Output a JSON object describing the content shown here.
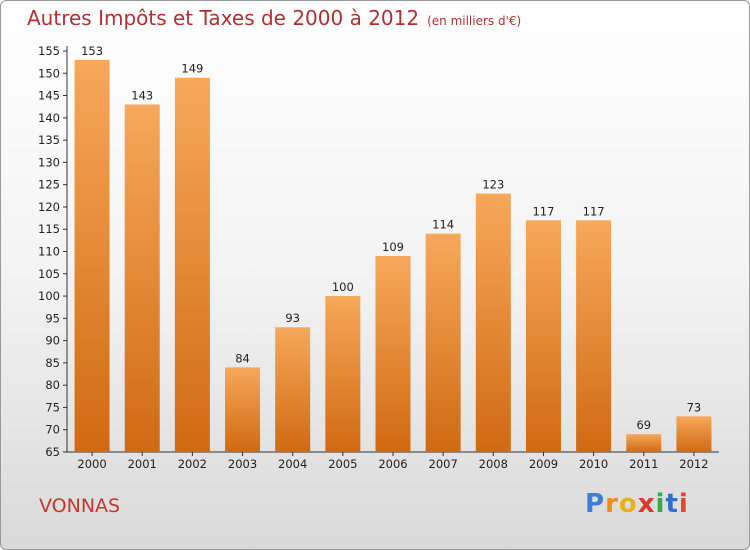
{
  "header": {
    "title": "Autres Impôts et Taxes de 2000 à 2012",
    "subtitle": "(en milliers d'€)"
  },
  "commune": "VONNAS",
  "logo": {
    "text": "Proxiti",
    "colors": [
      "#3a7fd5",
      "#f08a1a",
      "#e8b21b",
      "#d93a2b",
      "#3aa84a",
      "#2f6fc8",
      "#e0482e"
    ]
  },
  "colors": {
    "bar_top": "#f7a85a",
    "bar_bottom": "#d06a12",
    "title": "#b1302f"
  },
  "chart_data": {
    "type": "bar",
    "categories": [
      "2000",
      "2001",
      "2002",
      "2003",
      "2004",
      "2005",
      "2006",
      "2007",
      "2008",
      "2009",
      "2010",
      "2011",
      "2012"
    ],
    "values": [
      153,
      143,
      149,
      84,
      93,
      100,
      109,
      114,
      123,
      117,
      117,
      69,
      73
    ],
    "ylim": [
      65,
      155
    ],
    "yticks": [
      65,
      70,
      75,
      80,
      85,
      90,
      95,
      100,
      105,
      110,
      115,
      120,
      125,
      130,
      135,
      140,
      145,
      150,
      155
    ],
    "grid": false,
    "title": "Autres Impôts et Taxes de 2000 à 2012",
    "xlabel": "",
    "ylabel": ""
  }
}
